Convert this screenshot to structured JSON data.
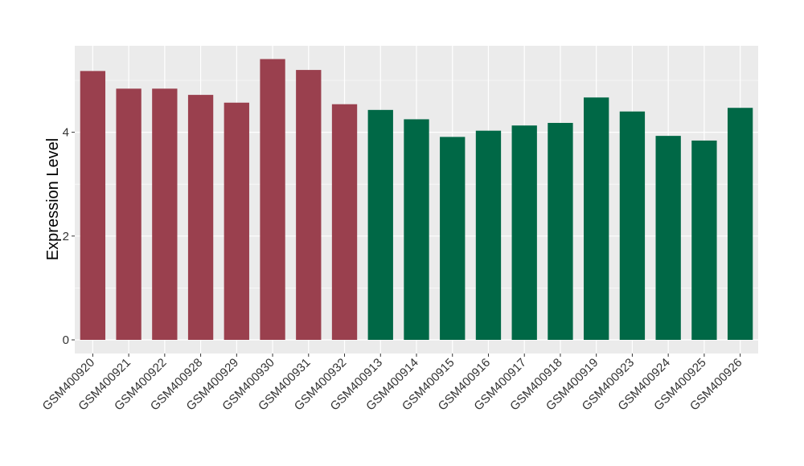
{
  "chart_data": {
    "type": "bar",
    "title": "",
    "xlabel": "",
    "ylabel": "Expression Level",
    "ylim": [
      0,
      5.68
    ],
    "yticks": [
      0,
      2,
      4
    ],
    "grid": true,
    "categories": [
      "GSM400920",
      "GSM400921",
      "GSM400922",
      "GSM400928",
      "GSM400929",
      "GSM400930",
      "GSM400931",
      "GSM400932",
      "GSM400913",
      "GSM400914",
      "GSM400915",
      "GSM400916",
      "GSM400917",
      "GSM400918",
      "GSM400919",
      "GSM400923",
      "GSM400924",
      "GSM400925",
      "GSM400926"
    ],
    "values": [
      5.18,
      4.84,
      4.84,
      4.72,
      4.57,
      5.41,
      5.2,
      4.54,
      4.43,
      4.25,
      3.91,
      4.03,
      4.13,
      4.18,
      4.67,
      4.4,
      3.93,
      3.84,
      4.47
    ],
    "groups": [
      "g1",
      "g1",
      "g1",
      "g1",
      "g1",
      "g1",
      "g1",
      "g1",
      "g2",
      "g2",
      "g2",
      "g2",
      "g2",
      "g2",
      "g2",
      "g2",
      "g2",
      "g2",
      "g2"
    ],
    "colors": {
      "g1": "#9a404e",
      "g2": "#006846",
      "panel": "#ebebeb",
      "grid": "#ffffff"
    }
  }
}
